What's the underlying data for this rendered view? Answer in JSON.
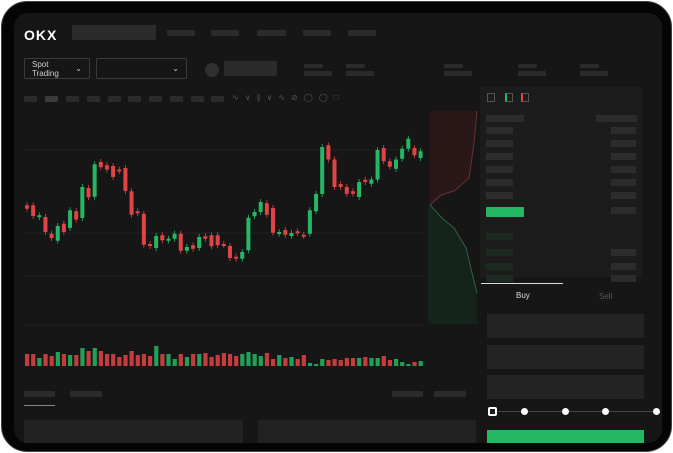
{
  "header": {
    "logo": "OKX"
  },
  "market": {
    "mode_label": "Spot Trading"
  },
  "order_form": {
    "tabs": [
      {
        "label": "Buy",
        "active": true
      },
      {
        "label": "Sell",
        "active": false
      }
    ],
    "slider_percent": 0
  },
  "colors": {
    "up": "#25b864",
    "down": "#e04444",
    "bg": "#161616",
    "panel": "#1c1c1c"
  },
  "chart": {
    "type": "candlestick",
    "candles": [
      [
        66.7,
        65.3
      ],
      [
        66.7,
        62.4
      ],
      [
        61.9,
        62.7
      ],
      [
        62,
        56
      ],
      [
        55.3,
        53.6
      ],
      [
        52.5,
        58.4
      ],
      [
        59.3,
        56
      ],
      [
        57.6,
        64.7
      ],
      [
        64.3,
        61
      ],
      [
        61.6,
        74
      ],
      [
        73.6,
        69.9
      ],
      [
        70.1,
        83.1
      ],
      [
        84,
        81.9
      ],
      [
        82.7,
        81
      ],
      [
        82.4,
        78
      ],
      [
        81,
        80.3
      ],
      [
        81.6,
        72.4
      ],
      [
        72.3,
        62.9
      ],
      [
        64.3,
        63.5
      ],
      [
        63.3,
        50.9
      ],
      [
        51.2,
        50.4
      ],
      [
        49.6,
        54.4
      ],
      [
        54.7,
        52.7
      ],
      [
        52.7,
        53.3
      ],
      [
        53.3,
        55.3
      ],
      [
        55.3,
        48.5
      ],
      [
        48.5,
        50
      ],
      [
        50.7,
        49.3
      ],
      [
        49.6,
        54
      ],
      [
        54.3,
        53.3
      ],
      [
        54.7,
        50.3
      ],
      [
        54.7,
        50.7
      ],
      [
        51.2,
        50.7
      ],
      [
        50.4,
        45.6
      ],
      [
        46.1,
        45.3
      ],
      [
        45.3,
        48
      ],
      [
        48.7,
        61.7
      ],
      [
        62.3,
        64
      ],
      [
        64,
        68
      ],
      [
        67.5,
        62.9
      ],
      [
        65.6,
        55.7
      ],
      [
        55.3,
        56
      ],
      [
        56.8,
        54.9
      ],
      [
        54.4,
        55.6
      ],
      [
        56.3,
        55.7
      ],
      [
        54.9,
        54.4
      ],
      [
        55.3,
        64.7
      ],
      [
        64.3,
        71.2
      ],
      [
        71.2,
        90
      ],
      [
        90.7,
        85
      ],
      [
        85,
        74
      ],
      [
        75.2,
        74
      ],
      [
        74,
        71.3
      ],
      [
        72.3,
        71.3
      ],
      [
        70,
        76
      ],
      [
        76.9,
        76
      ],
      [
        75.3,
        77
      ],
      [
        77,
        88.8
      ],
      [
        89.6,
        84.3
      ],
      [
        84.3,
        82.1
      ],
      [
        81.3,
        85
      ],
      [
        85.3,
        89.3
      ],
      [
        89.3,
        93.3
      ],
      [
        89.6,
        86.7
      ],
      [
        85.6,
        88.3
      ]
    ],
    "volumes": [
      12,
      12,
      8,
      12,
      10,
      14,
      12,
      11,
      11,
      18,
      15,
      18,
      15,
      12,
      12,
      9,
      11,
      15,
      11,
      12,
      10,
      20,
      12,
      12,
      7,
      12,
      9,
      12,
      12,
      13,
      9,
      11,
      13,
      12,
      10,
      12,
      14,
      12,
      10,
      13,
      7,
      11,
      8,
      9,
      7,
      11,
      3,
      2,
      7,
      6,
      7,
      6,
      8,
      8,
      8,
      9,
      8,
      8,
      10,
      6,
      7,
      4,
      2,
      4,
      5
    ]
  }
}
